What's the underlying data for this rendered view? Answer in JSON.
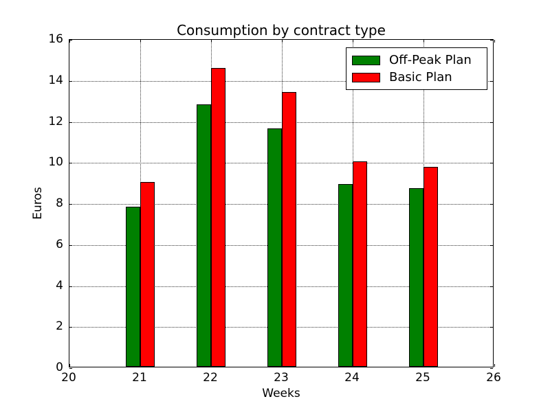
{
  "chart_data": {
    "type": "bar",
    "title": "Consumption by contract type",
    "xlabel": "Weeks",
    "ylabel": "Euros",
    "categories": [
      21,
      22,
      23,
      24,
      25
    ],
    "series": [
      {
        "name": "Off-Peak Plan",
        "color": "#008000",
        "values": [
          7.8,
          12.8,
          11.6,
          8.9,
          8.7
        ]
      },
      {
        "name": "Basic Plan",
        "color": "#ff0000",
        "values": [
          9.0,
          14.55,
          13.4,
          10.0,
          9.75
        ]
      }
    ],
    "xlim": [
      20,
      26
    ],
    "ylim": [
      0,
      16
    ],
    "xticks": [
      20,
      21,
      22,
      23,
      24,
      25,
      26
    ],
    "yticks": [
      0,
      2,
      4,
      6,
      8,
      10,
      12,
      14,
      16
    ],
    "grid": true,
    "grid_style": "dotted",
    "legend_position": "upper right",
    "bar_width_units": 0.2,
    "bar_edge_color": "#000000",
    "axis_color": "#000000",
    "background_color": "#ffffff"
  }
}
